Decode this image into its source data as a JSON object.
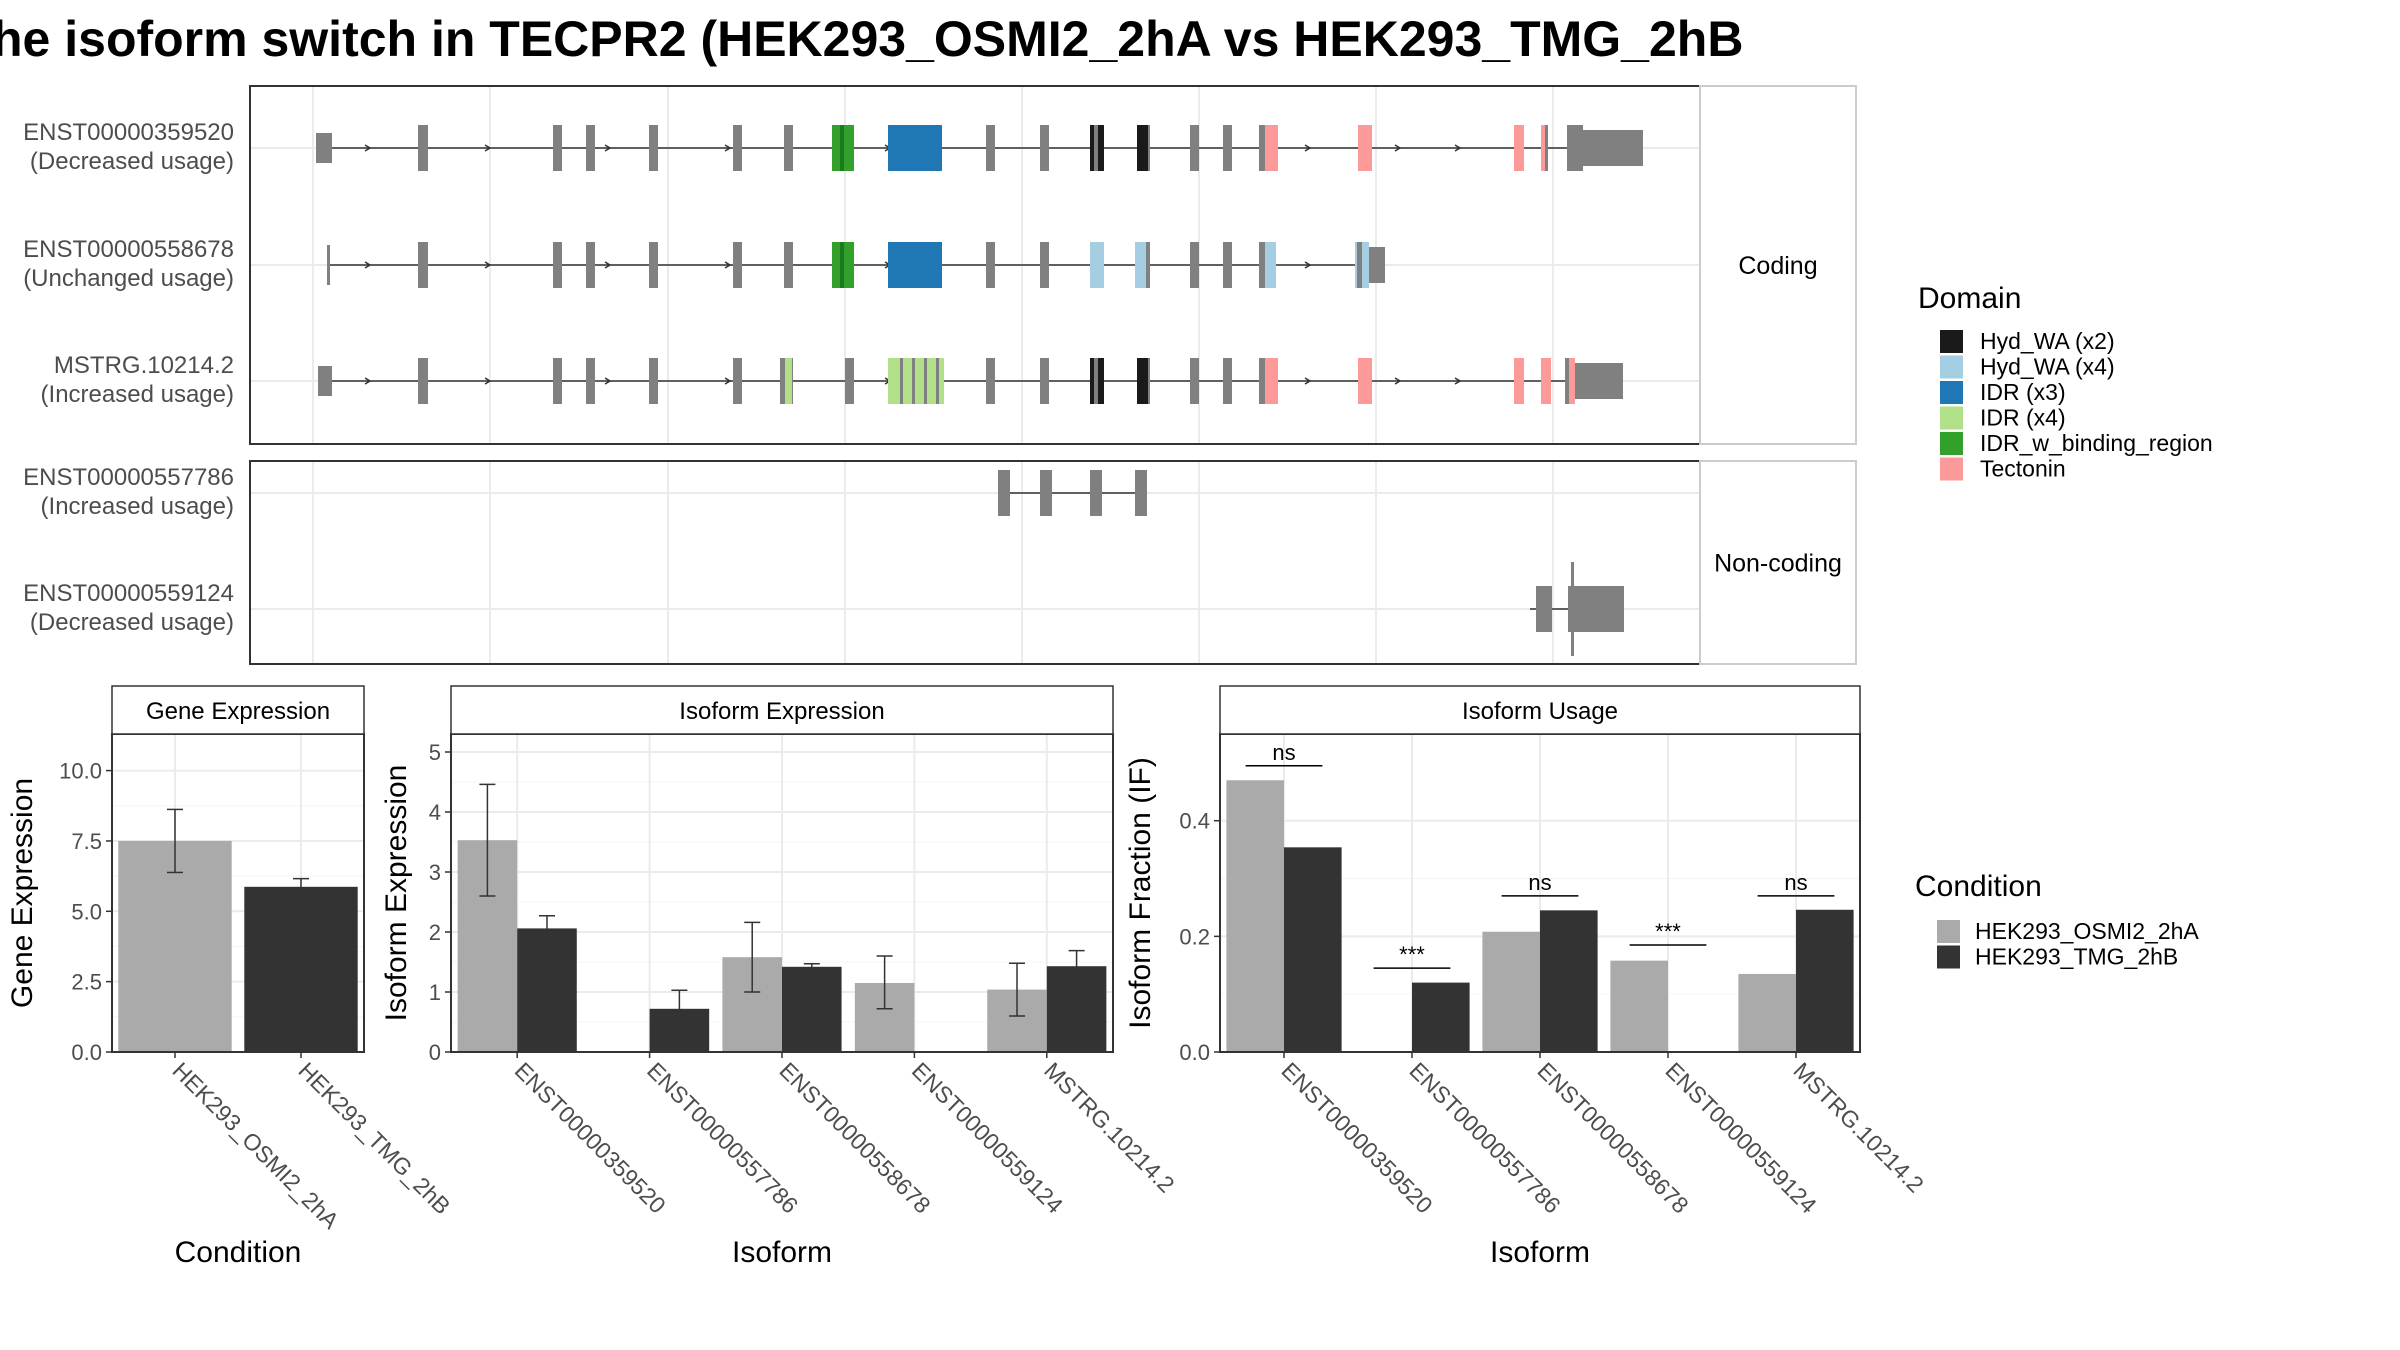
{
  "title": "he isoform switch in TECPR2 (HEK293_OSMI2_2hA vs HEK293_TMG_2hB",
  "colors": {
    "exon": "#808080",
    "panel_border": "#333333",
    "grid": "#ebebeb",
    "strip_fill": "#ffffff",
    "cond_a": "#aaaaaa",
    "cond_b": "#333333"
  },
  "structure": {
    "panels": [
      {
        "label": "Coding",
        "rows": [
          {
            "id": "ENST00000359520",
            "usage": "(Decreased usage)"
          },
          {
            "id": "ENST00000558678",
            "usage": "(Unchanged usage)"
          },
          {
            "id": "MSTRG.10214.2",
            "usage": "(Increased usage)"
          }
        ]
      },
      {
        "label": "Non-coding",
        "rows": [
          {
            "id": "ENST00000557786",
            "usage": "(Increased usage)"
          },
          {
            "id": "ENST00000559124",
            "usage": "(Decreased usage)"
          }
        ]
      }
    ],
    "domain_legend": {
      "title": "Domain",
      "items": [
        {
          "label": "Hyd_WA (x2)",
          "color": "#1a1a1a"
        },
        {
          "label": "Hyd_WA (x4)",
          "color": "#a6cee3"
        },
        {
          "label": "IDR (x3)",
          "color": "#1f78b4"
        },
        {
          "label": "IDR (x4)",
          "color": "#b2df8a"
        },
        {
          "label": "IDR_w_binding_region",
          "color": "#33a02c"
        },
        {
          "label": "Tectonin",
          "color": "#fb9a99"
        }
      ]
    }
  },
  "chart_data": [
    {
      "type": "bar",
      "strip": "Gene Expression",
      "xlabel": "Condition",
      "ylabel": "Gene Expression",
      "ylim": [
        0,
        11.3
      ],
      "yticks": [
        "0.0",
        "2.5",
        "5.0",
        "7.5",
        "10.0"
      ],
      "categories": [
        "HEK293_OSMI2_2hA",
        "HEK293_TMG_2hB"
      ],
      "values": [
        7.5,
        5.87
      ],
      "errors": [
        [
          6.38,
          8.62
        ],
        [
          5.58,
          6.16
        ]
      ]
    },
    {
      "type": "bar",
      "strip": "Isoform Expression",
      "xlabel": "Isoform",
      "ylabel": "Isoform Expression",
      "ylim": [
        0,
        5.3
      ],
      "yticks": [
        "0",
        "1",
        "2",
        "3",
        "4",
        "5"
      ],
      "categories": [
        "ENST00000359520",
        "ENST00000557786",
        "ENST00000558678",
        "ENST00000559124",
        "MSTRG.10214.2"
      ],
      "series": [
        {
          "name": "HEK293_OSMI2_2hA",
          "values": [
            3.53,
            0.0,
            1.58,
            1.15,
            1.04
          ],
          "errors": [
            [
              2.6,
              4.46
            ],
            [
              0.0,
              0.0
            ],
            [
              1.0,
              2.16
            ],
            [
              0.72,
              1.6
            ],
            [
              0.6,
              1.48
            ]
          ]
        },
        {
          "name": "HEK293_TMG_2hB",
          "values": [
            2.06,
            0.72,
            1.42,
            0.0,
            1.43
          ],
          "errors": [
            [
              1.85,
              2.27
            ],
            [
              0.4,
              1.03
            ],
            [
              1.37,
              1.47
            ],
            [
              0.0,
              0.0
            ],
            [
              1.17,
              1.69
            ]
          ]
        }
      ]
    },
    {
      "type": "bar",
      "strip": "Isoform Usage",
      "xlabel": "Isoform",
      "ylabel": "Isoform Fraction (IF)",
      "ylim": [
        0,
        0.55
      ],
      "yticks": [
        "0.0",
        "0.2",
        "0.4"
      ],
      "categories": [
        "ENST00000359520",
        "ENST00000557786",
        "ENST00000558678",
        "ENST00000559124",
        "MSTRG.10214.2"
      ],
      "series": [
        {
          "name": "HEK293_OSMI2_2hA",
          "values": [
            0.47,
            0.0,
            0.208,
            0.158,
            0.135
          ]
        },
        {
          "name": "HEK293_TMG_2hB",
          "values": [
            0.354,
            0.12,
            0.245,
            0.0,
            0.246
          ]
        }
      ],
      "significance": [
        {
          "label": "ns",
          "level": 0.495
        },
        {
          "label": "***",
          "level": 0.145
        },
        {
          "label": "ns",
          "level": 0.27
        },
        {
          "label": "***",
          "level": 0.185
        },
        {
          "label": "ns",
          "level": 0.27
        }
      ]
    }
  ],
  "condition_legend": {
    "title": "Condition",
    "items": [
      {
        "label": "HEK293_OSMI2_2hA",
        "color": "#aaaaaa"
      },
      {
        "label": "HEK293_TMG_2hB",
        "color": "#333333"
      }
    ]
  }
}
